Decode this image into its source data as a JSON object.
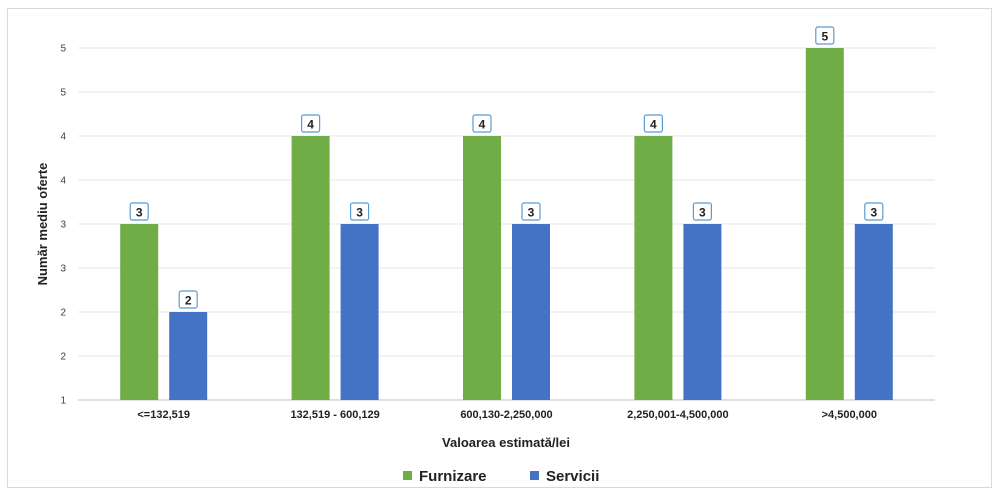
{
  "chart_data": {
    "type": "bar",
    "title": "",
    "xlabel": "Valoarea estimată/lei",
    "ylabel": "Număr mediu oferte",
    "categories": [
      "<=132,519",
      "132,519 - 600,129",
      "600,130-2,250,000",
      "2,250,001-4,500,000",
      ">4,500,000"
    ],
    "series": [
      {
        "name": "Furnizare",
        "color": "#70ad47",
        "values": [
          3,
          4,
          4,
          4,
          5
        ],
        "labels": [
          "3",
          "4",
          "4",
          "4",
          "5"
        ]
      },
      {
        "name": "Servicii",
        "color": "#4472c4",
        "values": [
          2,
          3,
          3,
          3,
          3
        ],
        "labels": [
          "2",
          "3",
          "3",
          "3",
          "3"
        ]
      }
    ],
    "ylim": [
      1,
      5
    ],
    "y_ticks": [
      "1",
      "2",
      "2",
      "3",
      "3",
      "4",
      "4",
      "5",
      "5"
    ],
    "grid": true,
    "legend": "bottom-center"
  }
}
